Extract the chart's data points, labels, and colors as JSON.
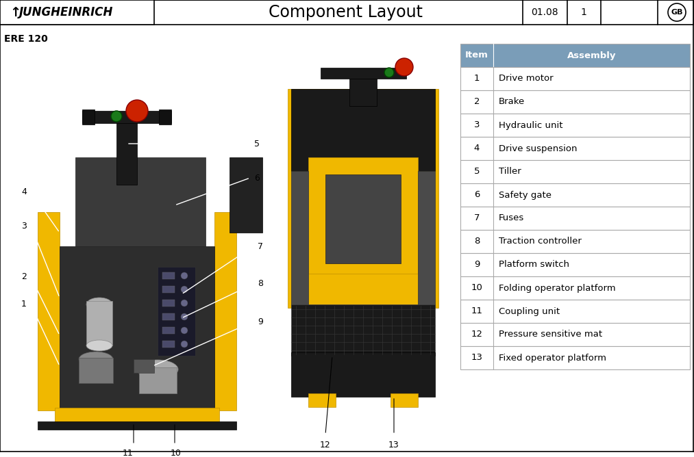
{
  "title": "Component Layout",
  "subtitle": "ERE 120",
  "brand": "JUNGHEINRICH",
  "doc_ref": "01.08",
  "doc_page": "1",
  "doc_country": "GB",
  "table_header_bg": "#7a9db8",
  "table_border": "#aaaaaa",
  "items": [
    {
      "num": "1",
      "assembly": "Drive motor"
    },
    {
      "num": "2",
      "assembly": "Brake"
    },
    {
      "num": "3",
      "assembly": "Hydraulic unit"
    },
    {
      "num": "4",
      "assembly": "Drive suspension"
    },
    {
      "num": "5",
      "assembly": "Tiller"
    },
    {
      "num": "6",
      "assembly": "Safety gate"
    },
    {
      "num": "7",
      "assembly": "Fuses"
    },
    {
      "num": "8",
      "assembly": "Traction controller"
    },
    {
      "num": "9",
      "assembly": "Platform switch"
    },
    {
      "num": "10",
      "assembly": "Folding operator platform"
    },
    {
      "num": "11",
      "assembly": "Coupling unit"
    },
    {
      "num": "12",
      "assembly": "Pressure sensitive mat"
    },
    {
      "num": "13",
      "assembly": "Fixed operator platform"
    }
  ],
  "bg_color": "#ffffff",
  "yellow": "#f0b800",
  "dark_gray": "#2a2a2a",
  "mid_gray": "#555555",
  "light_gray": "#cccccc",
  "red": "#cc2200",
  "green": "#1a7a1a",
  "white": "#ffffff"
}
